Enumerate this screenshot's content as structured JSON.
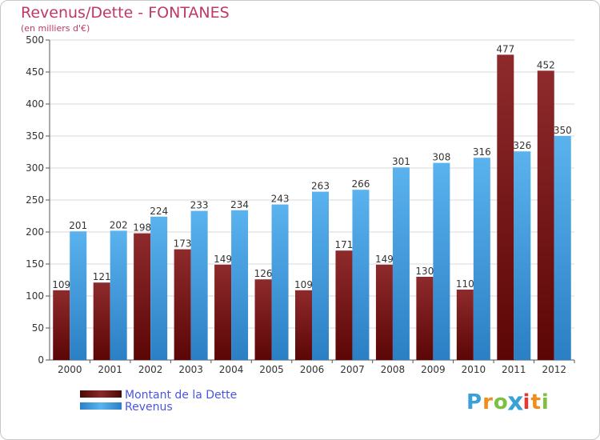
{
  "chart_data": {
    "type": "bar",
    "title": "Revenus/Dette - FONTANES",
    "subtitle": "(en milliers d'€)",
    "categories": [
      "2000",
      "2001",
      "2002",
      "2003",
      "2004",
      "2005",
      "2006",
      "2007",
      "2008",
      "2009",
      "2010",
      "2011",
      "2012"
    ],
    "series": [
      {
        "name": "Montant de la Dette",
        "color": "#7a1416",
        "values": [
          109,
          121,
          198,
          173,
          149,
          126,
          109,
          171,
          149,
          130,
          110,
          477,
          452
        ]
      },
      {
        "name": "Revenus",
        "color": "#3d9ee2",
        "values": [
          201,
          202,
          224,
          233,
          234,
          243,
          263,
          266,
          301,
          308,
          316,
          326,
          350
        ]
      }
    ],
    "ylim": [
      0,
      500
    ],
    "yticks": [
      0,
      50,
      100,
      150,
      200,
      250,
      300,
      350,
      400,
      450,
      500
    ],
    "grid": true,
    "legend": "bottom-left"
  },
  "legend": {
    "debt_label": "Montant de la Dette",
    "revenue_label": "Revenus"
  },
  "logo": {
    "letters": [
      "P",
      "r",
      "o",
      "x",
      "i",
      "t",
      "i"
    ],
    "colors": [
      "#3aa0d8",
      "#f08c1a",
      "#7cc043",
      "#3aa0d8",
      "#e23a2e",
      "#f08c1a",
      "#7cc043"
    ]
  }
}
